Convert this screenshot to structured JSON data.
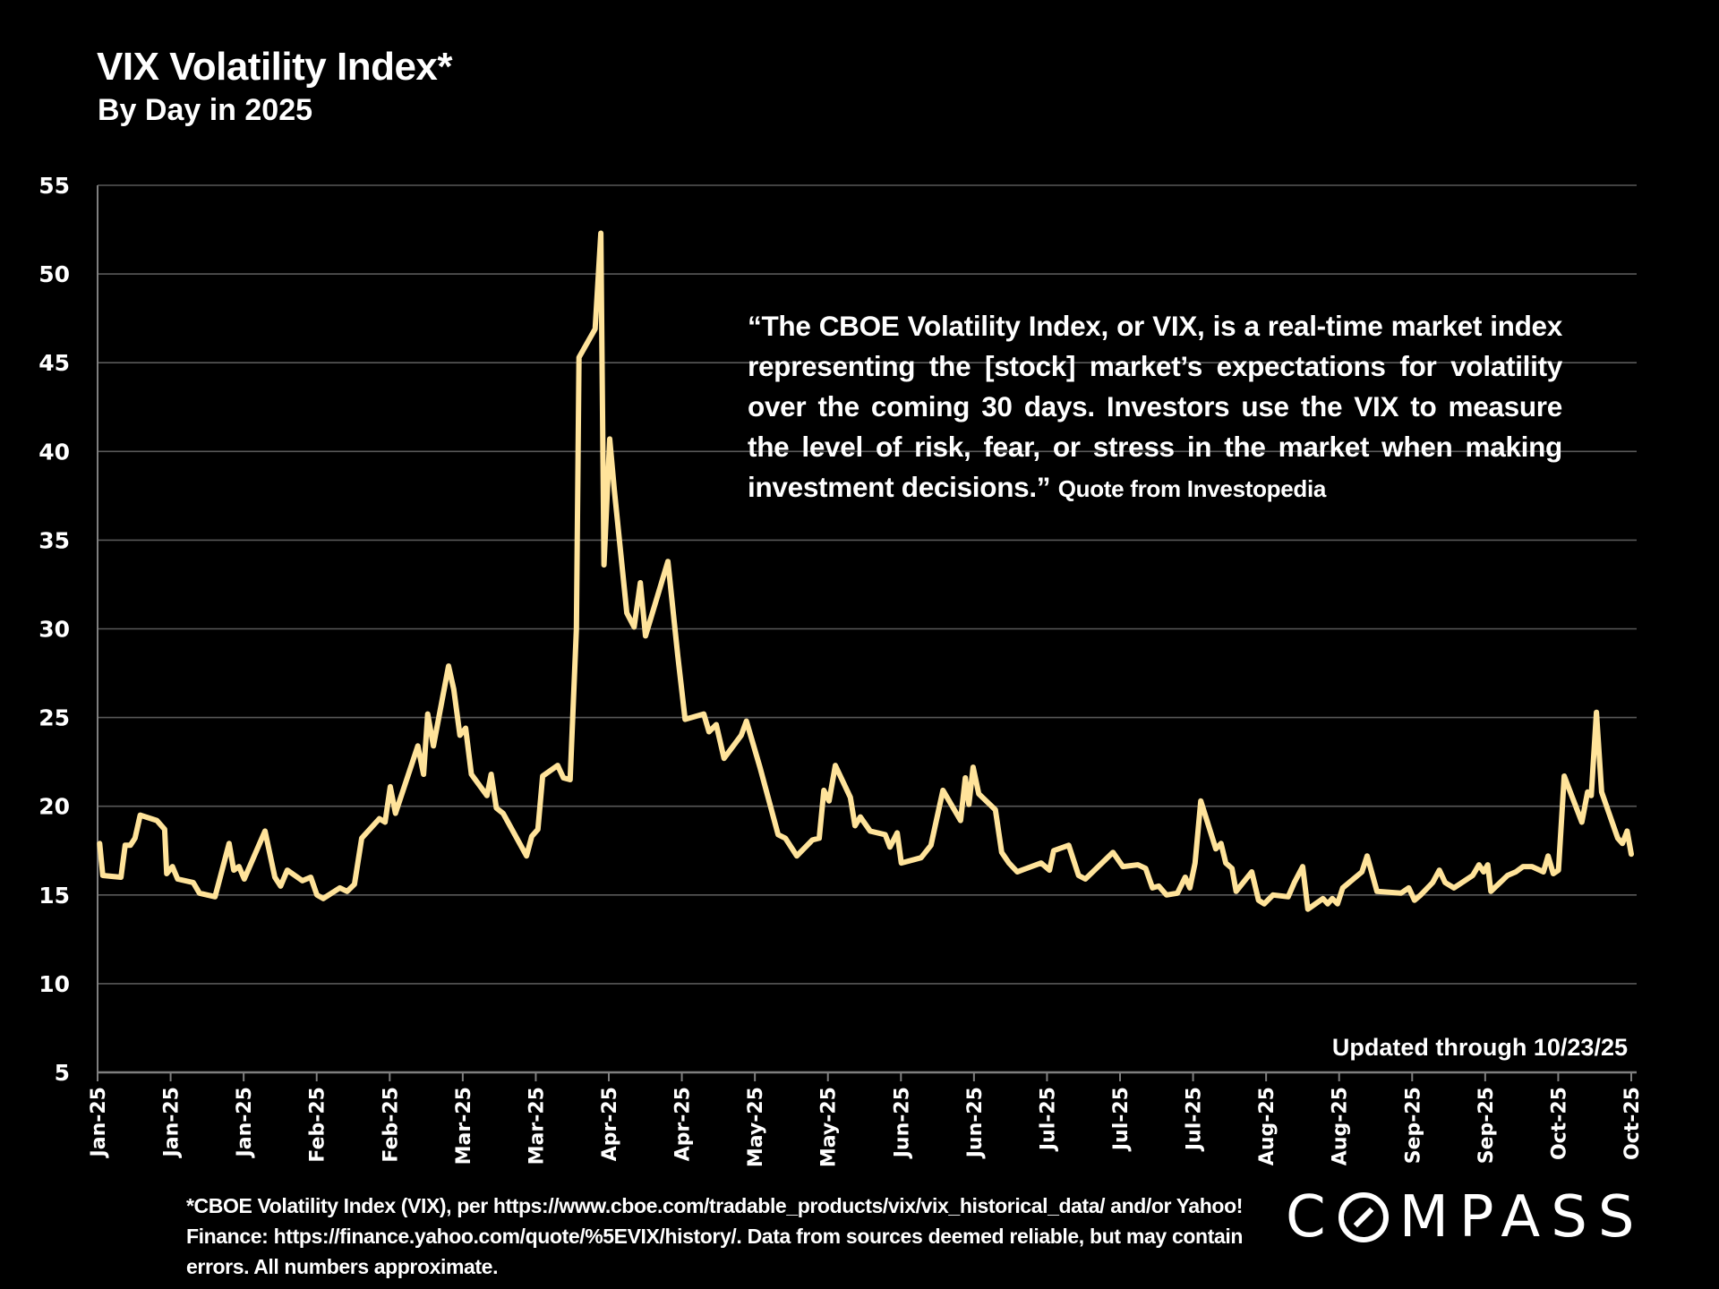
{
  "header": {
    "title": "VIX Volatility Index*",
    "subtitle": "By Day in 2025"
  },
  "quote": {
    "text": "“The CBOE Volatility Index, or VIX, is a real-time market index representing the [stock] market’s expectations for volatility over the coming 30 days. Investors use the VIX to measure the level of risk, fear, or stress in the market when making investment decisions.”",
    "source": "Quote from Investopedia"
  },
  "updated_note": "Updated through 10/23/25",
  "footnote": "*CBOE Volatility Index (VIX), per https://www.cboe.com/tradable_products/vix/vix_historical_data/ and/or Yahoo! Finance: https://finance.yahoo.com/quote/%5EVIX/history/. Data from sources deemed reliable, but may contain errors. All numbers approximate.",
  "logo": {
    "text_before": "C",
    "text_after": "MPASS",
    "name": "COMPASS",
    "icon": "compass-o-icon"
  },
  "colors": {
    "background": "#000000",
    "line": "#FFE39A",
    "grid": "#595959",
    "text": "#FFFFFF"
  },
  "chart_data": {
    "type": "line",
    "title": "VIX Volatility Index*",
    "subtitle": "By Day in 2025",
    "xlabel": "",
    "ylabel": "",
    "ylim": [
      5,
      55
    ],
    "yticks": [
      5,
      10,
      15,
      20,
      25,
      30,
      35,
      40,
      45,
      50,
      55
    ],
    "xlim_days": [
      0,
      295
    ],
    "x_unit": "days since Jan 1, 2025",
    "xtick_labels": [
      "Jan-25",
      "Jan-25",
      "Jan-25",
      "Feb-25",
      "Feb-25",
      "Mar-25",
      "Mar-25",
      "Apr-25",
      "Apr-25",
      "May-25",
      "May-25",
      "Jun-25",
      "Jun-25",
      "Jul-25",
      "Jul-25",
      "Jul-25",
      "Aug-25",
      "Aug-25",
      "Sep-25",
      "Sep-25",
      "Oct-25",
      "Oct-25"
    ],
    "grid": true,
    "legend": "none",
    "series": [
      {
        "name": "VIX",
        "x": [
          0.4,
          1,
          4.5,
          5.3,
          6.3,
          7.2,
          8.2,
          11.4,
          12.9,
          13.3,
          14.4,
          15.4,
          18.4,
          19.6,
          22.6,
          25.3,
          26.2,
          27.2,
          28.2,
          32.2,
          34.1,
          35.2,
          36.5,
          39.4,
          41.0,
          42.2,
          43.4,
          46.6,
          48.0,
          49.4,
          50.8,
          54.2,
          55.3,
          56.3,
          57.3,
          61.6,
          62.7,
          63.5,
          64.6,
          67.5,
          68.5,
          69.7,
          70.8,
          71.9,
          74.9,
          75.7,
          76.7,
          78.0,
          82.5,
          83.5,
          84.7,
          85.6,
          88.5,
          89.6,
          90.9,
          92.1,
          92.6,
          95.7,
          96.8,
          97.4,
          98.5,
          99.4,
          101.8,
          103.2,
          104.4,
          105.4,
          109.7,
          111.6,
          113.0,
          116.6,
          117.6,
          119.0,
          120.5,
          123.8,
          124.8,
          127.4,
          130.9,
          132.3,
          134.5,
          137.5,
          138.8,
          139.7,
          140.7,
          141.9,
          144.8,
          145.7,
          146.7,
          148.6,
          151.5,
          152.4,
          153.8,
          154.6,
          158.4,
          160.3,
          162.6,
          166.0,
          166.9,
          167.6,
          168.4,
          169.5,
          172.7,
          173.9,
          175.3,
          176.9,
          181.5,
          183.1,
          183.9,
          186.8,
          188.7,
          190.0,
          195.3,
          197.2,
          200.1,
          201.6,
          202.9,
          204.1,
          205.6,
          207.7,
          209.2,
          210.1,
          211.1,
          212.2,
          215.1,
          216.1,
          217.0,
          218.2,
          219.0,
          222.0,
          223.3,
          224.4,
          226.1,
          229.0,
          230.2,
          231.8,
          232.8,
          235.7,
          236.6,
          237.5,
          238.5,
          239.5,
          243.2,
          244.2,
          246.1,
          250.7,
          252.2,
          253.3,
          254.5,
          256.8,
          258.1,
          259.2,
          260.9,
          264.5,
          265.7,
          266.6,
          267.4,
          268.0,
          271.2,
          272.8,
          274.2,
          275.9,
          278.1,
          279.0,
          280.0,
          281.0,
          282.1,
          285.5,
          286.6,
          287.3,
          288.3,
          289.3,
          292.4,
          293.3,
          294.2,
          295.0
        ],
        "values": [
          17.9,
          16.1,
          16.0,
          17.8,
          17.8,
          18.2,
          19.5,
          19.2,
          18.7,
          16.2,
          16.6,
          15.9,
          15.7,
          15.1,
          14.9,
          17.9,
          16.4,
          16.6,
          15.9,
          18.6,
          16.0,
          15.5,
          16.4,
          15.8,
          16.0,
          15.0,
          14.8,
          15.4,
          15.2,
          15.6,
          18.2,
          19.3,
          19.1,
          21.1,
          19.6,
          23.4,
          21.8,
          25.2,
          23.4,
          27.9,
          26.6,
          24.0,
          24.4,
          21.8,
          20.6,
          21.8,
          19.9,
          19.6,
          17.2,
          18.3,
          18.7,
          21.7,
          22.3,
          21.6,
          21.5,
          30.0,
          45.3,
          46.9,
          52.3,
          33.6,
          40.7,
          37.8,
          30.9,
          30.1,
          32.6,
          29.6,
          33.8,
          28.5,
          24.9,
          25.2,
          24.2,
          24.6,
          22.7,
          24.0,
          24.8,
          22.2,
          18.4,
          18.2,
          17.2,
          18.1,
          18.2,
          20.9,
          20.3,
          22.3,
          20.5,
          18.9,
          19.4,
          18.6,
          18.4,
          17.7,
          18.5,
          16.8,
          17.1,
          17.8,
          20.9,
          19.2,
          21.6,
          20.1,
          22.2,
          20.7,
          19.8,
          17.4,
          16.8,
          16.3,
          16.8,
          16.4,
          17.5,
          17.8,
          16.1,
          15.9,
          17.4,
          16.6,
          16.7,
          16.5,
          15.4,
          15.5,
          15.0,
          15.1,
          16.0,
          15.4,
          16.8,
          20.3,
          17.6,
          17.9,
          16.8,
          16.5,
          15.2,
          16.3,
          14.7,
          14.5,
          15.0,
          14.9,
          15.7,
          16.6,
          14.2,
          14.8,
          14.5,
          14.8,
          14.5,
          15.4,
          16.3,
          17.2,
          15.2,
          15.1,
          15.4,
          14.7,
          15.0,
          15.7,
          16.4,
          15.7,
          15.4,
          16.1,
          16.7,
          16.3,
          16.7,
          15.2,
          16.1,
          16.3,
          16.6,
          16.6,
          16.3,
          17.2,
          16.2,
          16.4,
          21.7,
          19.1,
          20.8,
          20.6,
          25.3,
          20.8,
          18.2,
          17.9,
          18.6,
          17.3
        ]
      }
    ]
  }
}
